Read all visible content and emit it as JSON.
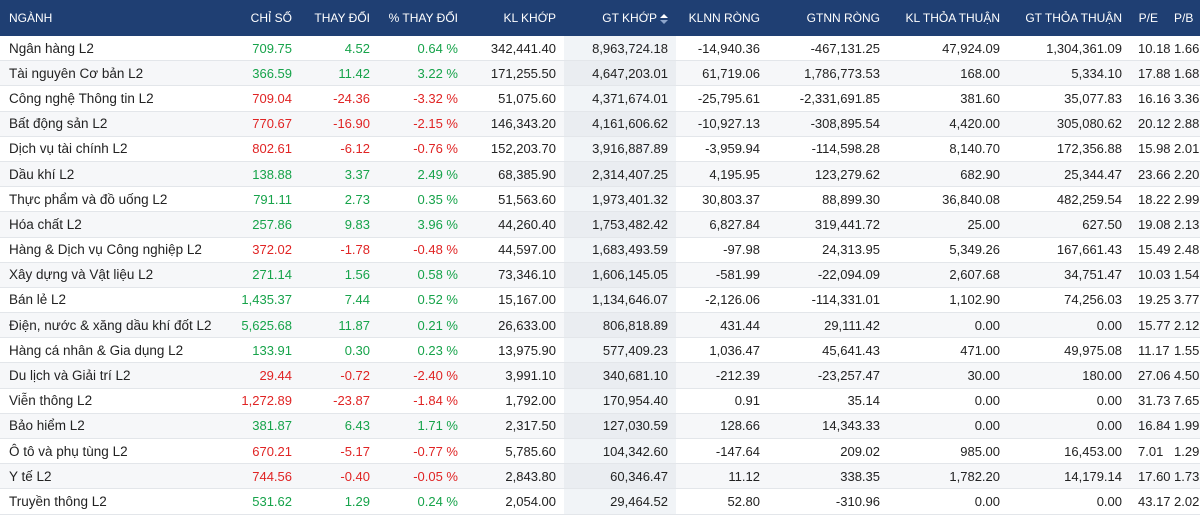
{
  "colors": {
    "header_bg": "#1f3f73",
    "up": "#16a34a",
    "down": "#e02424"
  },
  "headers": [
    "NGÀNH",
    "CHỈ SỐ",
    "THAY ĐỔI",
    "% THAY ĐỔI",
    "KL KHỚP",
    "GT KHỚP",
    "KLNN RÒNG",
    "GTNN RÒNG",
    "KL THỎA THUẬN",
    "GT THỎA THUẬN",
    "P/E",
    "P/B"
  ],
  "sort_icon": "sort-icon",
  "rows": [
    {
      "name": "Ngân hàng L2",
      "idx": "709.75",
      "chg": "4.52",
      "pct": "0.64 %",
      "kl": "342,441.40",
      "gt": "8,963,724.18",
      "klnn": "-14,940.36",
      "gtnn": "-467,131.25",
      "kltt": "47,924.09",
      "gttt": "1,304,361.09",
      "pe": "10.18",
      "pb": "1.66",
      "dir": "up"
    },
    {
      "name": "Tài nguyên Cơ bản L2",
      "idx": "366.59",
      "chg": "11.42",
      "pct": "3.22 %",
      "kl": "171,255.50",
      "gt": "4,647,203.01",
      "klnn": "61,719.06",
      "gtnn": "1,786,773.53",
      "kltt": "168.00",
      "gttt": "5,334.10",
      "pe": "17.88",
      "pb": "1.68",
      "dir": "up"
    },
    {
      "name": "Công nghệ Thông tin L2",
      "idx": "709.04",
      "chg": "-24.36",
      "pct": "-3.32 %",
      "kl": "51,075.60",
      "gt": "4,371,674.01",
      "klnn": "-25,795.61",
      "gtnn": "-2,331,691.85",
      "kltt": "381.60",
      "gttt": "35,077.83",
      "pe": "16.16",
      "pb": "3.36",
      "dir": "down"
    },
    {
      "name": "Bất động sản L2",
      "idx": "770.67",
      "chg": "-16.90",
      "pct": "-2.15 %",
      "kl": "146,343.20",
      "gt": "4,161,606.62",
      "klnn": "-10,927.13",
      "gtnn": "-308,895.54",
      "kltt": "4,420.00",
      "gttt": "305,080.62",
      "pe": "20.12",
      "pb": "2.88",
      "dir": "down"
    },
    {
      "name": "Dịch vụ tài chính L2",
      "idx": "802.61",
      "chg": "-6.12",
      "pct": "-0.76 %",
      "kl": "152,203.70",
      "gt": "3,916,887.89",
      "klnn": "-3,959.94",
      "gtnn": "-114,598.28",
      "kltt": "8,140.70",
      "gttt": "172,356.88",
      "pe": "15.98",
      "pb": "2.01",
      "dir": "down"
    },
    {
      "name": "Dầu khí L2",
      "idx": "138.88",
      "chg": "3.37",
      "pct": "2.49 %",
      "kl": "68,385.90",
      "gt": "2,314,407.25",
      "klnn": "4,195.95",
      "gtnn": "123,279.62",
      "kltt": "682.90",
      "gttt": "25,344.47",
      "pe": "23.66",
      "pb": "2.20",
      "dir": "up"
    },
    {
      "name": "Thực phẩm và đồ uống L2",
      "idx": "791.11",
      "chg": "2.73",
      "pct": "0.35 %",
      "kl": "51,563.60",
      "gt": "1,973,401.32",
      "klnn": "30,803.37",
      "gtnn": "88,899.30",
      "kltt": "36,840.08",
      "gttt": "482,259.54",
      "pe": "18.22",
      "pb": "2.99",
      "dir": "up"
    },
    {
      "name": "Hóa chất L2",
      "idx": "257.86",
      "chg": "9.83",
      "pct": "3.96 %",
      "kl": "44,260.40",
      "gt": "1,753,482.42",
      "klnn": "6,827.84",
      "gtnn": "319,441.72",
      "kltt": "25.00",
      "gttt": "627.50",
      "pe": "19.08",
      "pb": "2.13",
      "dir": "up"
    },
    {
      "name": "Hàng & Dịch vụ Công nghiệp L2",
      "idx": "372.02",
      "chg": "-1.78",
      "pct": "-0.48 %",
      "kl": "44,597.00",
      "gt": "1,683,493.59",
      "klnn": "-97.98",
      "gtnn": "24,313.95",
      "kltt": "5,349.26",
      "gttt": "167,661.43",
      "pe": "15.49",
      "pb": "2.48",
      "dir": "down"
    },
    {
      "name": "Xây dựng và Vật liệu L2",
      "idx": "271.14",
      "chg": "1.56",
      "pct": "0.58 %",
      "kl": "73,346.10",
      "gt": "1,606,145.05",
      "klnn": "-581.99",
      "gtnn": "-22,094.09",
      "kltt": "2,607.68",
      "gttt": "34,751.47",
      "pe": "10.03",
      "pb": "1.54",
      "dir": "up"
    },
    {
      "name": "Bán lẻ L2",
      "idx": "1,435.37",
      "chg": "7.44",
      "pct": "0.52 %",
      "kl": "15,167.00",
      "gt": "1,134,646.07",
      "klnn": "-2,126.06",
      "gtnn": "-114,331.01",
      "kltt": "1,102.90",
      "gttt": "74,256.03",
      "pe": "19.25",
      "pb": "3.77",
      "dir": "up"
    },
    {
      "name": "Điện, nước & xăng dầu khí đốt L2",
      "idx": "5,625.68",
      "chg": "11.87",
      "pct": "0.21 %",
      "kl": "26,633.00",
      "gt": "806,818.89",
      "klnn": "431.44",
      "gtnn": "29,111.42",
      "kltt": "0.00",
      "gttt": "0.00",
      "pe": "15.77",
      "pb": "2.12",
      "dir": "up"
    },
    {
      "name": "Hàng cá nhân & Gia dụng L2",
      "idx": "133.91",
      "chg": "0.30",
      "pct": "0.23 %",
      "kl": "13,975.90",
      "gt": "577,409.23",
      "klnn": "1,036.47",
      "gtnn": "45,641.43",
      "kltt": "471.00",
      "gttt": "49,975.08",
      "pe": "11.17",
      "pb": "1.55",
      "dir": "up"
    },
    {
      "name": "Du lịch và Giải trí L2",
      "idx": "29.44",
      "chg": "-0.72",
      "pct": "-2.40 %",
      "kl": "3,991.10",
      "gt": "340,681.10",
      "klnn": "-212.39",
      "gtnn": "-23,257.47",
      "kltt": "30.00",
      "gttt": "180.00",
      "pe": "27.06",
      "pb": "4.50",
      "dir": "down"
    },
    {
      "name": "Viễn thông L2",
      "idx": "1,272.89",
      "chg": "-23.87",
      "pct": "-1.84 %",
      "kl": "1,792.00",
      "gt": "170,954.40",
      "klnn": "0.91",
      "gtnn": "35.14",
      "kltt": "0.00",
      "gttt": "0.00",
      "pe": "31.73",
      "pb": "7.65",
      "dir": "down"
    },
    {
      "name": "Bảo hiểm L2",
      "idx": "381.87",
      "chg": "6.43",
      "pct": "1.71 %",
      "kl": "2,317.50",
      "gt": "127,030.59",
      "klnn": "128.66",
      "gtnn": "14,343.33",
      "kltt": "0.00",
      "gttt": "0.00",
      "pe": "16.84",
      "pb": "1.99",
      "dir": "up"
    },
    {
      "name": "Ô tô và phụ tùng L2",
      "idx": "670.21",
      "chg": "-5.17",
      "pct": "-0.77 %",
      "kl": "5,785.60",
      "gt": "104,342.60",
      "klnn": "-147.64",
      "gtnn": "209.02",
      "kltt": "985.00",
      "gttt": "16,453.00",
      "pe": "7.01",
      "pb": "1.29",
      "dir": "down"
    },
    {
      "name": "Y tế L2",
      "idx": "744.56",
      "chg": "-0.40",
      "pct": "-0.05 %",
      "kl": "2,843.80",
      "gt": "60,346.47",
      "klnn": "11.12",
      "gtnn": "338.35",
      "kltt": "1,782.20",
      "gttt": "14,179.14",
      "pe": "17.60",
      "pb": "1.73",
      "dir": "down"
    },
    {
      "name": "Truyền thông L2",
      "idx": "531.62",
      "chg": "1.29",
      "pct": "0.24 %",
      "kl": "2,054.00",
      "gt": "29,464.52",
      "klnn": "52.80",
      "gtnn": "-310.96",
      "kltt": "0.00",
      "gttt": "0.00",
      "pe": "43.17",
      "pb": "2.02",
      "dir": "up"
    }
  ]
}
